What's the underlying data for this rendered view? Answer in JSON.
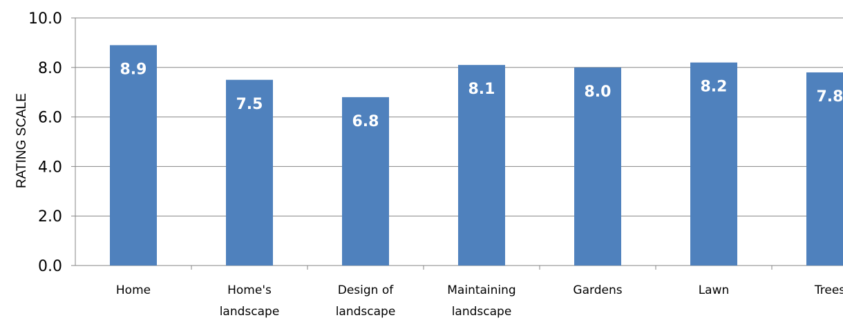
{
  "chart_data": {
    "type": "bar",
    "title": "",
    "xlabel": "",
    "ylabel": "RATING SCALE",
    "ylim": [
      0,
      10
    ],
    "yticks": [
      "0.0",
      "2.0",
      "4.0",
      "6.0",
      "8.0",
      "10.0"
    ],
    "grid": true,
    "categories": [
      [
        "Home"
      ],
      [
        "Home's",
        "landscape"
      ],
      [
        "Design of",
        "landscape"
      ],
      [
        "Maintaining",
        "landscape"
      ],
      [
        "Gardens"
      ],
      [
        "Lawn"
      ],
      [
        "Trees"
      ]
    ],
    "values": [
      8.9,
      7.5,
      6.8,
      8.1,
      8.0,
      8.2,
      7.8
    ],
    "data_labels": [
      "8.9",
      "7.5",
      "6.8",
      "8.1",
      "8.0",
      "8.2",
      "7.8"
    ],
    "bar_color": "#4f81bd"
  }
}
